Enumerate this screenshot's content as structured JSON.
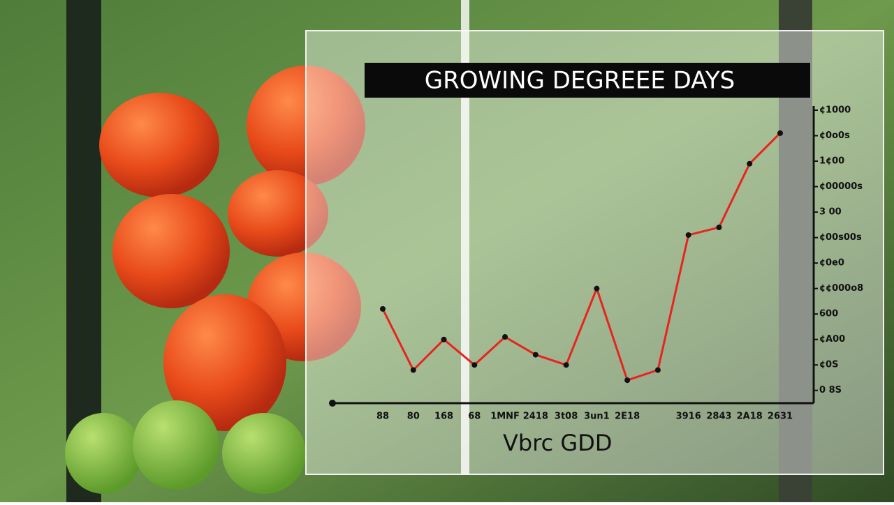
{
  "chart_data": {
    "type": "line",
    "title": "GROWING DEGREEE DAYS",
    "x_label": "Vbrc GDD",
    "categories": [
      "88",
      "80",
      "168",
      "68",
      "1MNF",
      "2418",
      "3t08",
      "3un1",
      "2E18",
      null,
      "3916",
      "2843",
      "2A18",
      "2631"
    ],
    "series": [
      {
        "name": "GDD",
        "color": "#e8231f",
        "values": [
          4.2,
          1.8,
          3.0,
          2.0,
          3.1,
          2.4,
          2.0,
          5.0,
          1.4,
          1.8,
          7.1,
          7.4,
          9.9,
          11.1
        ]
      }
    ],
    "ylim": [
      0.5,
      12
    ],
    "yticks": [
      {
        "value": 1,
        "label": "0 8S"
      },
      {
        "value": 2,
        "label": "¢0S"
      },
      {
        "value": 3,
        "label": "¢A00"
      },
      {
        "value": 4,
        "label": "600"
      },
      {
        "value": 5,
        "label": "¢¢000o8"
      },
      {
        "value": 6,
        "label": "¢0e0"
      },
      {
        "value": 7,
        "label": "¢00s00s"
      },
      {
        "value": 8,
        "label": "3 00"
      },
      {
        "value": 9,
        "label": "¢00000s"
      },
      {
        "value": 10,
        "label": "1¢00"
      },
      {
        "value": 11,
        "label": "¢0o0s"
      },
      {
        "value": 12,
        "label": "¢1000"
      }
    ]
  }
}
